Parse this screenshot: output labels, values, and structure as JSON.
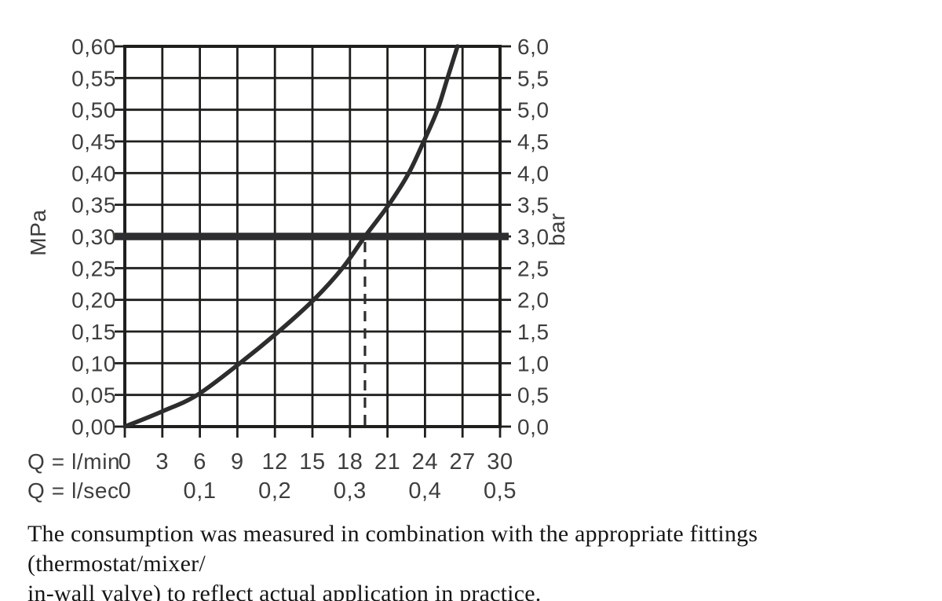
{
  "chart_data": {
    "type": "line",
    "title": "",
    "x_axis": {
      "row1_label": "Q = l/min",
      "row1_ticks": [
        "0",
        "3",
        "6",
        "9",
        "12",
        "15",
        "18",
        "21",
        "24",
        "27",
        "30"
      ],
      "row2_label": "Q = l/sec",
      "row2_ticks": [
        {
          "label": "0",
          "at_lmin": 0
        },
        {
          "label": "0,1",
          "at_lmin": 6
        },
        {
          "label": "0,2",
          "at_lmin": 12
        },
        {
          "label": "0,3",
          "at_lmin": 18
        },
        {
          "label": "0,4",
          "at_lmin": 24
        },
        {
          "label": "0,5",
          "at_lmin": 30
        }
      ],
      "range": [
        0,
        30
      ],
      "step": 3
    },
    "y_axis_left": {
      "unit": "MPa",
      "ticks": [
        "0,00",
        "0,05",
        "0,10",
        "0,15",
        "0,20",
        "0,25",
        "0,30",
        "0,35",
        "0,40",
        "0,45",
        "0,50",
        "0,55",
        "0,60"
      ],
      "range": [
        0,
        0.6
      ],
      "step": 0.05
    },
    "y_axis_right": {
      "unit": "bar",
      "ticks": [
        "0,0",
        "0,5",
        "1,0",
        "1,5",
        "2,0",
        "2,5",
        "3,0",
        "3,5",
        "4,0",
        "4,5",
        "5,0",
        "5,5",
        "6,0"
      ],
      "range": [
        0,
        6
      ],
      "step": 0.5
    },
    "curve_points_lmin_mpa": [
      [
        0,
        0
      ],
      [
        3,
        0.024
      ],
      [
        5.8,
        0.05
      ],
      [
        9.2,
        0.1
      ],
      [
        12.3,
        0.15
      ],
      [
        15.1,
        0.2
      ],
      [
        17.4,
        0.25
      ],
      [
        19.2,
        0.3
      ],
      [
        21.1,
        0.35
      ],
      [
        22.7,
        0.4
      ],
      [
        23.9,
        0.45
      ],
      [
        25.0,
        0.5
      ],
      [
        25.8,
        0.55
      ],
      [
        26.6,
        0.6
      ]
    ],
    "reference_line_mpa": 0.3,
    "reference_line_bar": 3.0,
    "dashed_marker_lmin": 19.2,
    "grid": true,
    "legend": null
  },
  "caption": {
    "line1": "The consumption was measured in combination with the appropriate fittings (thermostat/mixer/",
    "line2": "in-wall valve) to reflect actual application in practice."
  },
  "colors": {
    "grid": "#1f1f1d",
    "curve": "#2d2d2d",
    "reference_line": "#2e2e30",
    "labels": "#3e3e3d",
    "background": "#ffffff"
  }
}
